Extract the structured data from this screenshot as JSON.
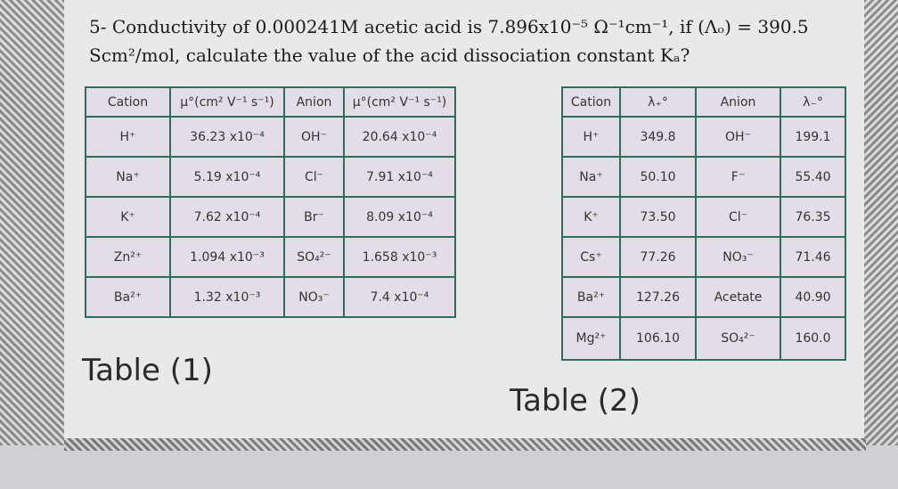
{
  "question": {
    "line1": "5- Conductivity of 0.000241M acetic acid is 7.896x10⁻⁵ Ω⁻¹cm⁻¹, if (Λₒ) = 390.5",
    "line2": "Scm²/mol, calculate the value of the acid dissociation constant Kₐ?"
  },
  "table1": {
    "header": [
      "Cation",
      "μ°(cm² V⁻¹ s⁻¹)",
      "Anion",
      "μ°(cm² V⁻¹ s⁻¹)"
    ],
    "rows": [
      [
        "H⁺",
        "36.23 x10⁻⁴",
        "OH⁻",
        "20.64 x10⁻⁴"
      ],
      [
        "Na⁺",
        "5.19 x10⁻⁴",
        "Cl⁻",
        "7.91 x10⁻⁴"
      ],
      [
        "K⁺",
        "7.62 x10⁻⁴",
        "Br⁻",
        "8.09 x10⁻⁴"
      ],
      [
        "Zn²⁺",
        "1.094 x10⁻³",
        "SO₄²⁻",
        "1.658 x10⁻³"
      ],
      [
        "Ba²⁺",
        "1.32 x10⁻³",
        "NO₃⁻",
        "7.4 x10⁻⁴"
      ]
    ],
    "caption": "Table (1)"
  },
  "table2": {
    "header": [
      "Cation",
      "λ₊°",
      "Anion",
      "λ₋°"
    ],
    "rows": [
      [
        "H⁺",
        "349.8",
        "OH⁻",
        "199.1"
      ],
      [
        "Na⁺",
        "50.10",
        "F⁻",
        "55.40"
      ],
      [
        "K⁺",
        "73.50",
        "Cl⁻",
        "76.35"
      ],
      [
        "Cs⁺",
        "77.26",
        "NO₃⁻",
        "71.46"
      ],
      [
        "Ba²⁺",
        "127.26",
        "Acetate",
        "40.90"
      ],
      [
        "Mg²⁺",
        "106.10",
        "SO₄²⁻",
        "160.0"
      ]
    ],
    "caption": "Table (2)"
  }
}
